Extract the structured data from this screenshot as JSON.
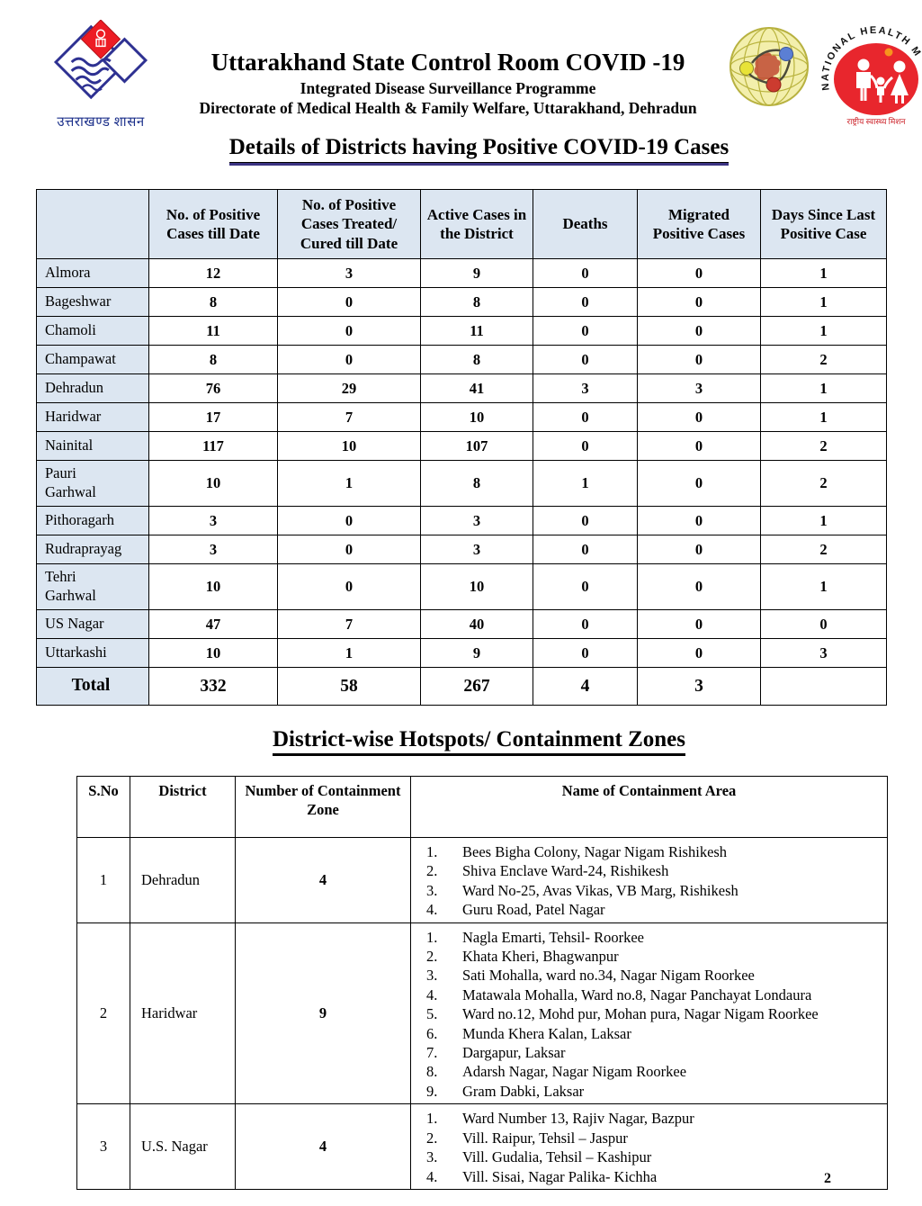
{
  "header": {
    "org_caption_hindi": "उत्तराखण्ड शासन",
    "title": "Uttarakhand State Control Room COVID -19",
    "subtitle1": "Integrated Disease Surveillance Programme",
    "subtitle2": "Directorate of Medical Health & Family Welfare, Uttarakhand, Dehradun",
    "nhm_arc_text": "NATIONAL HEALTH M",
    "nhm_caption_hindi": "राष्ट्रीय स्वास्थ्य मिशन"
  },
  "section1": {
    "heading": "Details of Districts having Positive COVID-19 Cases",
    "table": {
      "columns": [
        "",
        "No. of Positive Cases till Date",
        "No. of Positive Cases Treated/ Cured till Date",
        "Active Cases in the District",
        "Deaths",
        "Migrated Positive Cases",
        "Days Since Last Positive Case"
      ],
      "rows": [
        {
          "district": "Almora",
          "tall": false,
          "values": [
            "12",
            "3",
            "9",
            "0",
            "0",
            "1"
          ]
        },
        {
          "district": "Bageshwar",
          "tall": false,
          "values": [
            "8",
            "0",
            "8",
            "0",
            "0",
            "1"
          ]
        },
        {
          "district": "Chamoli",
          "tall": false,
          "values": [
            "11",
            "0",
            "11",
            "0",
            "0",
            "1"
          ]
        },
        {
          "district": "Champawat",
          "tall": false,
          "values": [
            "8",
            "0",
            "8",
            "0",
            "0",
            "2"
          ]
        },
        {
          "district": "Dehradun",
          "tall": false,
          "values": [
            "76",
            "29",
            "41",
            "3",
            "3",
            "1"
          ]
        },
        {
          "district": "Haridwar",
          "tall": false,
          "values": [
            "17",
            "7",
            "10",
            "0",
            "0",
            "1"
          ]
        },
        {
          "district": "Nainital",
          "tall": false,
          "values": [
            "117",
            "10",
            "107",
            "0",
            "0",
            "2"
          ]
        },
        {
          "district": "Pauri\nGarhwal",
          "tall": true,
          "values": [
            "10",
            "1",
            "8",
            "1",
            "0",
            "2"
          ]
        },
        {
          "district": "Pithoragarh",
          "tall": false,
          "values": [
            "3",
            "0",
            "3",
            "0",
            "0",
            "1"
          ]
        },
        {
          "district": "Rudraprayag",
          "tall": false,
          "values": [
            "3",
            "0",
            "3",
            "0",
            "0",
            "2"
          ]
        },
        {
          "district": "Tehri\nGarhwal",
          "tall": true,
          "values": [
            "10",
            "0",
            "10",
            "0",
            "0",
            "1"
          ]
        },
        {
          "district": "US Nagar",
          "tall": false,
          "values": [
            "47",
            "7",
            "40",
            "0",
            "0",
            "0"
          ]
        },
        {
          "district": "Uttarkashi",
          "tall": false,
          "values": [
            "10",
            "1",
            "9",
            "0",
            "0",
            "3"
          ]
        }
      ],
      "total_row": {
        "label": "Total",
        "values": [
          "332",
          "58",
          "267",
          "4",
          "3",
          ""
        ]
      }
    }
  },
  "section2": {
    "heading": "District-wise Hotspots/ Containment Zones",
    "table": {
      "columns": [
        "S.No",
        "District",
        "Number of Containment Zone",
        "Name of Containment Area"
      ],
      "rows": [
        {
          "sno": "1",
          "district": "Dehradun",
          "zones": "4",
          "areas": [
            "Bees Bigha Colony, Nagar Nigam Rishikesh",
            "Shiva Enclave Ward-24, Rishikesh",
            "Ward No-25, Avas Vikas, VB Marg, Rishikesh",
            "Guru Road, Patel Nagar"
          ]
        },
        {
          "sno": "2",
          "district": "Haridwar",
          "zones": "9",
          "areas": [
            "Nagla Emarti, Tehsil- Roorkee",
            "Khata Kheri, Bhagwanpur",
            "Sati Mohalla, ward no.34, Nagar Nigam Roorkee",
            "Matawala Mohalla, Ward no.8, Nagar Panchayat Londaura",
            "Ward no.12, Mohd pur, Mohan pura, Nagar Nigam Roorkee",
            "Munda Khera Kalan, Laksar",
            "Dargapur, Laksar",
            "Adarsh Nagar, Nagar Nigam Roorkee",
            "Gram Dabki, Laksar"
          ]
        },
        {
          "sno": "3",
          "district": "U.S. Nagar",
          "zones": "4",
          "areas": [
            "Ward Number 13, Rajiv Nagar, Bazpur",
            "Vill. Raipur, Tehsil – Jaspur",
            "Vill. Gudalia, Tehsil – Kashipur",
            "Vill. Sisai, Nagar Palika- Kichha"
          ]
        }
      ]
    }
  },
  "page_number": "2",
  "colors": {
    "table_header_bg": "#dce6f1",
    "heading_underline": "#3b3382",
    "emblem_red": "#ed1c24",
    "emblem_navy": "#2e3192",
    "nhm_red": "#e8262d"
  }
}
